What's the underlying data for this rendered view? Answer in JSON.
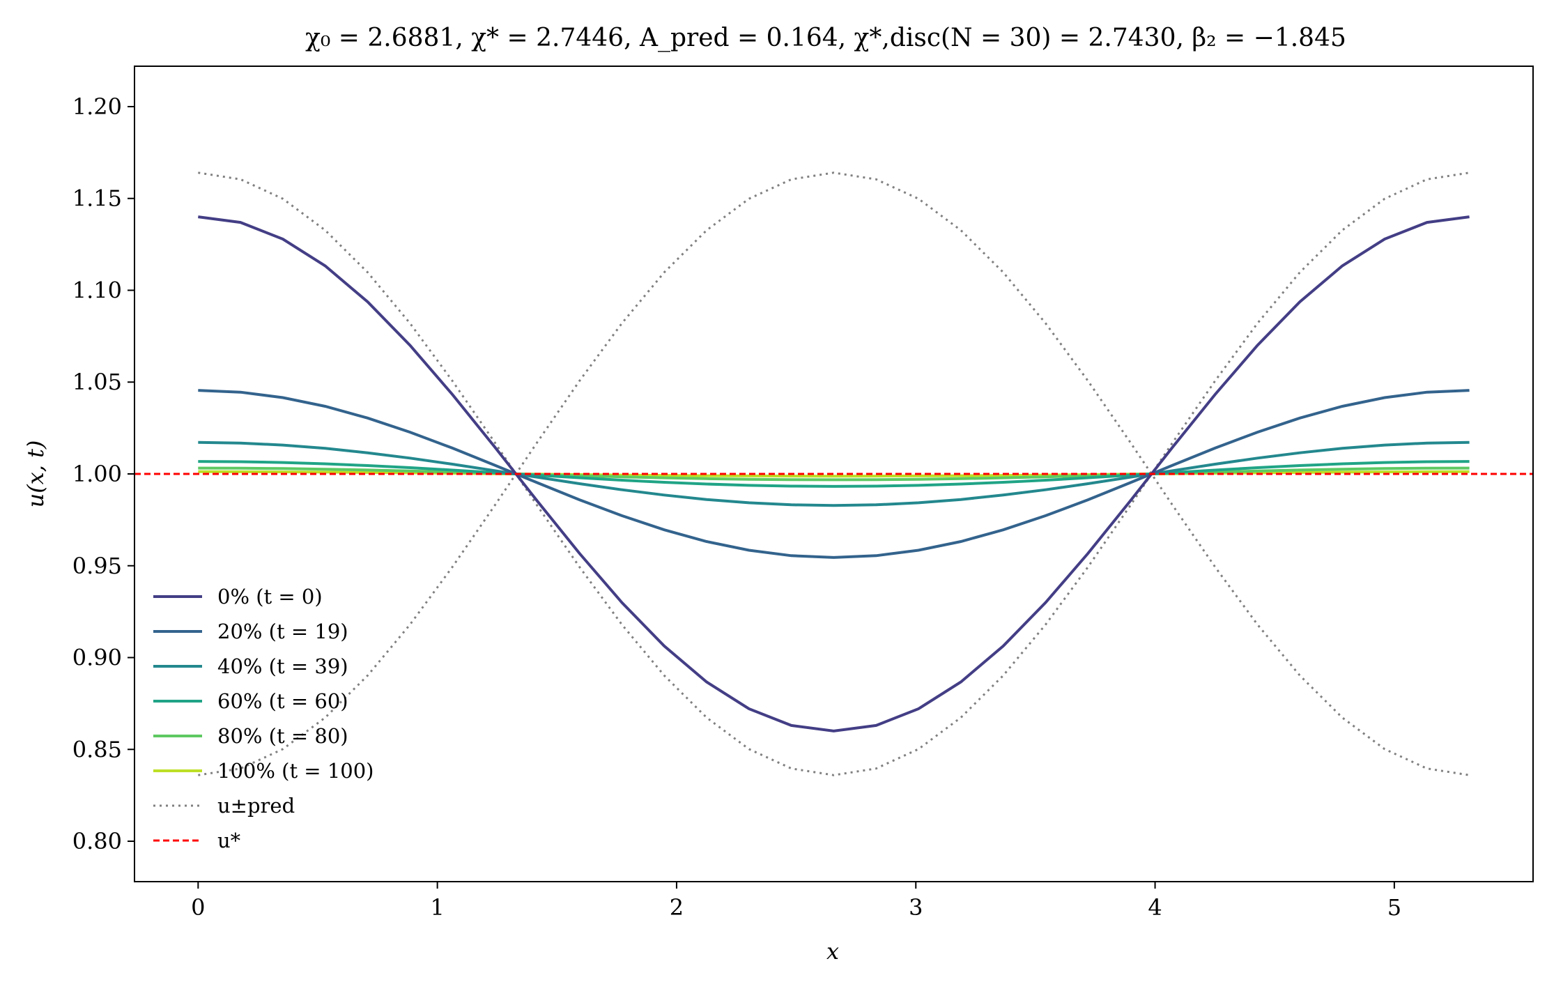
{
  "chart_data": {
    "type": "line",
    "title": "χ₀ = 2.6881,  χ* = 2.7446,  A_pred = 0.164,  χ*,disc(N = 30) = 2.7430,  β₂ = −1.845",
    "xlabel": "x",
    "ylabel": "u(x, t)",
    "xlim": [
      -0.266,
      5.58
    ],
    "ylim": [
      0.778,
      1.222
    ],
    "xticks": [
      0,
      1,
      2,
      3,
      4,
      5
    ],
    "xtick_labels": [
      "0",
      "1",
      "2",
      "3",
      "4",
      "5"
    ],
    "yticks": [
      0.8,
      0.85,
      0.9,
      0.95,
      1.0,
      1.05,
      1.1,
      1.15,
      1.2
    ],
    "ytick_labels": [
      "0.80",
      "0.85",
      "0.90",
      "0.95",
      "1.00",
      "1.05",
      "1.10",
      "1.15",
      "1.20"
    ],
    "grid": false,
    "legend_position": "lower-left",
    "domain_length": 5.3137,
    "n_points": 31,
    "series": [
      {
        "name": "0% (t = 0)",
        "kind": "profile",
        "amplitude": 0.14,
        "color": "#433e85",
        "dash": "solid"
      },
      {
        "name": "20% (t = 19)",
        "kind": "profile",
        "amplitude": 0.0455,
        "color": "#33638d",
        "dash": "solid"
      },
      {
        "name": "40% (t = 39)",
        "kind": "profile",
        "amplitude": 0.0172,
        "color": "#23888e",
        "dash": "solid"
      },
      {
        "name": "60% (t = 60)",
        "kind": "profile",
        "amplitude": 0.0068,
        "color": "#20a486",
        "dash": "solid"
      },
      {
        "name": "80% (t = 80)",
        "kind": "profile",
        "amplitude": 0.0032,
        "color": "#5ec962",
        "dash": "solid"
      },
      {
        "name": "100% (t = 100)",
        "kind": "profile",
        "amplitude": 0.0012,
        "color": "#bddf26",
        "dash": "solid"
      },
      {
        "name": "u±pred",
        "kind": "envelope",
        "amplitude": 0.164,
        "color": "#808080",
        "dash": "dotted"
      },
      {
        "name": "u*",
        "kind": "constant",
        "value": 1.0,
        "color": "#ff0000",
        "dash": "dashed"
      }
    ]
  }
}
